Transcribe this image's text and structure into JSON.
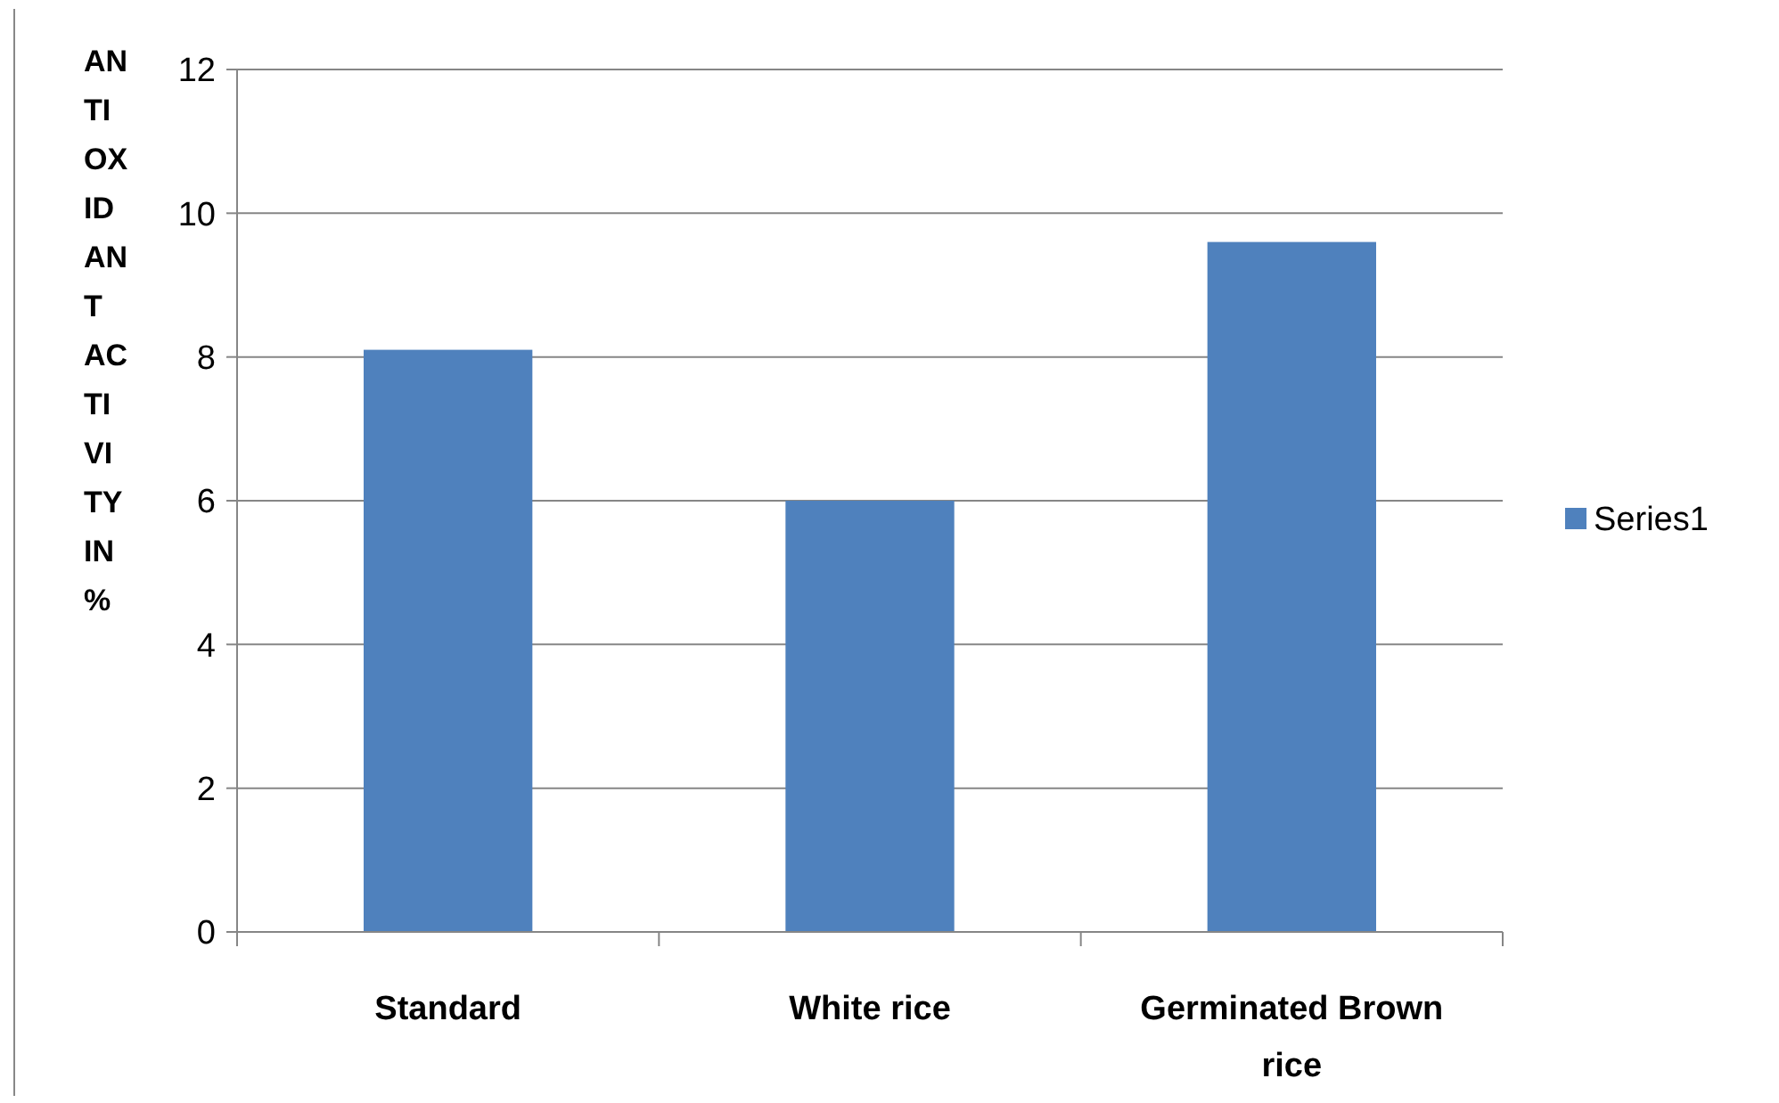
{
  "chart_data": {
    "type": "bar",
    "ylabel": "ANTIOXIDANT ACTIVITY IN %",
    "categories": [
      "Standard",
      "White rice",
      "Germinated Brown rice"
    ],
    "series": [
      {
        "name": "Series1",
        "color": "#4f81bd",
        "values": [
          8.1,
          6.0,
          9.6
        ]
      }
    ],
    "ylim": [
      0,
      12
    ],
    "yticks": [
      0,
      2,
      4,
      6,
      8,
      10,
      12
    ],
    "grid": "y",
    "legend": "right"
  }
}
